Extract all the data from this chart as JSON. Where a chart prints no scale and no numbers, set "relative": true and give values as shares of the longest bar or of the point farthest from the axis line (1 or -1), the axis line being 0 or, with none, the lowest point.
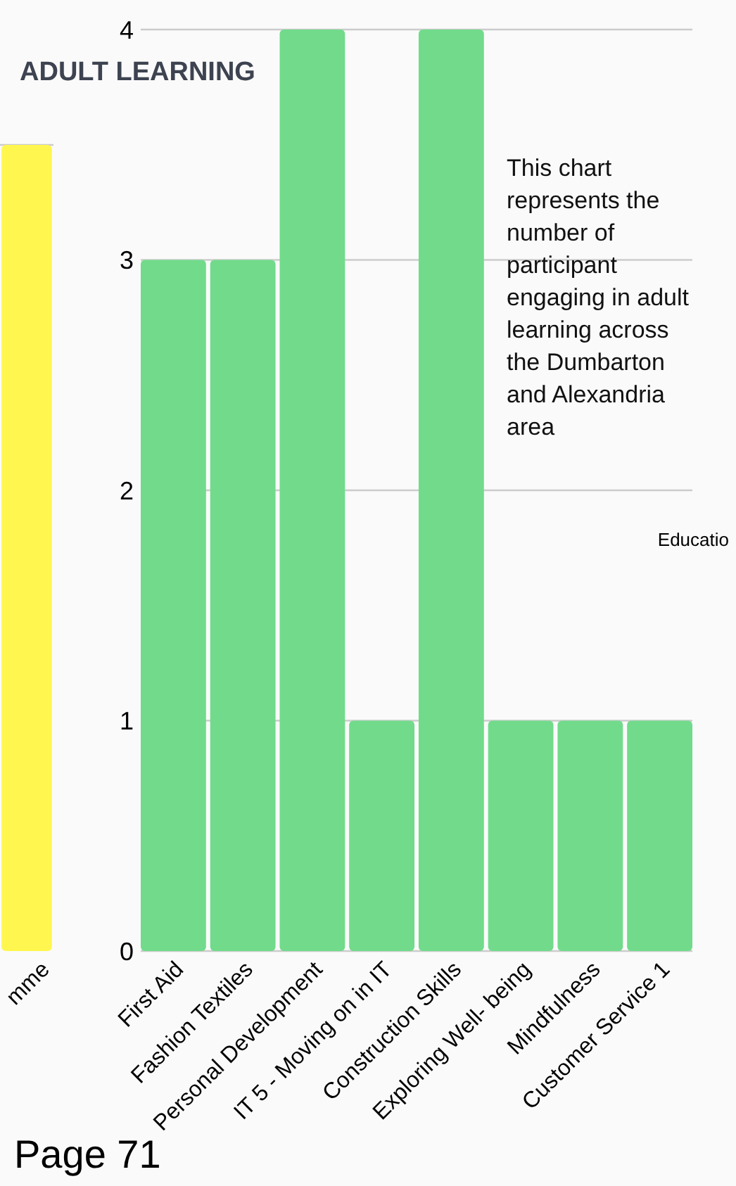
{
  "chart_data": [
    {
      "type": "bar",
      "categories": [
        "mme"
      ],
      "values": [
        1
      ],
      "relative": true,
      "color": "#fff64f",
      "grid": "y"
    },
    {
      "type": "bar",
      "title": "ADULT LEARNING",
      "categories": [
        "First Aid",
        "Fashion Textiles",
        "Personal Development",
        "IT 5 - Moving on in IT",
        "Construction Skills",
        "Exploring Well- being",
        "Mindfulness",
        "Customer Service 1"
      ],
      "values": [
        3,
        3,
        4,
        1,
        4,
        1,
        1,
        1
      ],
      "color": "#71db8b",
      "ylim": [
        0,
        4
      ],
      "yticks": [
        0,
        1,
        2,
        3,
        4
      ],
      "grid": "y",
      "annotations": [
        "This chart represents the number of participant engaging in adult learning across the Dumbarton and Alexandria area",
        "Educatio",
        "Page 71"
      ]
    }
  ]
}
